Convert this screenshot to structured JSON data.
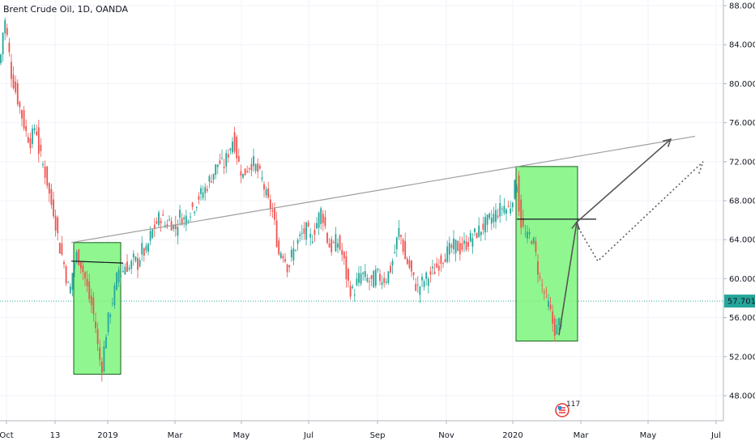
{
  "header": {
    "symbol_title": "Brent Crude Oil, 1D, OANDA"
  },
  "price_tag": {
    "value": "57.701",
    "bg": "#26a69a"
  },
  "colors": {
    "up": "#26a69a",
    "down": "#ef5350",
    "box_fill": "#7cf47c",
    "trend": "#9e9e9e",
    "arrow": "#555555"
  },
  "badge": {
    "count": "117"
  },
  "chart_data": {
    "type": "candlestick",
    "title": "Brent Crude Oil, 1D, OANDA",
    "x_ticks": [
      "Oct",
      "13",
      "2019",
      "Mar",
      "May",
      "Jul",
      "Sep",
      "Nov",
      "2020",
      "Mar",
      "May",
      "Jul"
    ],
    "y_ticks": [
      48,
      52,
      56,
      60,
      64,
      68,
      72,
      76,
      80,
      84,
      88
    ],
    "ylim": [
      45.5,
      88.5
    ],
    "last_price": 57.701,
    "price_path": [
      [
        0,
        82
      ],
      [
        3,
        85
      ],
      [
        6,
        86.5
      ],
      [
        10,
        84
      ],
      [
        14,
        81
      ],
      [
        20,
        79
      ],
      [
        26,
        77
      ],
      [
        32,
        75
      ],
      [
        38,
        74
      ],
      [
        44,
        76
      ],
      [
        48,
        73
      ],
      [
        52,
        72
      ],
      [
        58,
        70
      ],
      [
        62,
        68
      ],
      [
        66,
        67
      ],
      [
        70,
        65
      ],
      [
        74,
        63
      ],
      [
        78,
        62
      ],
      [
        82,
        60
      ],
      [
        86,
        58.5
      ],
      [
        90,
        61
      ],
      [
        95,
        62.5
      ],
      [
        100,
        61.5
      ],
      [
        105,
        60
      ],
      [
        110,
        58
      ],
      [
        114,
        57
      ],
      [
        118,
        55
      ],
      [
        122,
        52
      ],
      [
        126,
        51
      ],
      [
        130,
        54
      ],
      [
        134,
        56
      ],
      [
        138,
        57.5
      ],
      [
        142,
        59
      ],
      [
        146,
        61
      ],
      [
        150,
        60.5
      ],
      [
        155,
        61.5
      ],
      [
        160,
        61
      ],
      [
        165,
        62
      ],
      [
        170,
        61.5
      ],
      [
        175,
        63
      ],
      [
        180,
        62.5
      ],
      [
        186,
        64.5
      ],
      [
        192,
        65.5
      ],
      [
        198,
        66.5
      ],
      [
        204,
        65.5
      ],
      [
        210,
        66
      ],
      [
        216,
        65
      ],
      [
        222,
        66.5
      ],
      [
        228,
        66
      ],
      [
        234,
        67
      ],
      [
        240,
        67.5
      ],
      [
        246,
        68.5
      ],
      [
        252,
        69
      ],
      [
        258,
        70
      ],
      [
        264,
        71
      ],
      [
        270,
        72
      ],
      [
        276,
        71.5
      ],
      [
        282,
        73
      ],
      [
        288,
        74.5
      ],
      [
        294,
        72
      ],
      [
        300,
        70.5
      ],
      [
        306,
        71.5
      ],
      [
        312,
        72
      ],
      [
        318,
        71
      ],
      [
        324,
        70
      ],
      [
        330,
        68
      ],
      [
        336,
        67
      ],
      [
        340,
        65
      ],
      [
        344,
        62.5
      ],
      [
        348,
        63
      ],
      [
        352,
        62
      ],
      [
        356,
        61
      ],
      [
        360,
        62.5
      ],
      [
        366,
        63.5
      ],
      [
        372,
        64.5
      ],
      [
        378,
        65
      ],
      [
        384,
        64
      ],
      [
        390,
        65.5
      ],
      [
        396,
        67
      ],
      [
        400,
        66
      ],
      [
        404,
        64
      ],
      [
        408,
        63
      ],
      [
        412,
        63.5
      ],
      [
        416,
        64
      ],
      [
        420,
        63
      ],
      [
        424,
        62
      ],
      [
        428,
        60
      ],
      [
        432,
        59
      ],
      [
        436,
        58.5
      ],
      [
        440,
        59.5
      ],
      [
        446,
        60.5
      ],
      [
        452,
        60
      ],
      [
        458,
        59.5
      ],
      [
        464,
        60.5
      ],
      [
        470,
        60
      ],
      [
        476,
        60
      ],
      [
        482,
        61
      ],
      [
        488,
        63
      ],
      [
        492,
        65
      ],
      [
        496,
        64
      ],
      [
        500,
        62
      ],
      [
        504,
        61.5
      ],
      [
        508,
        60.5
      ],
      [
        512,
        59.5
      ],
      [
        516,
        59
      ],
      [
        520,
        59.5
      ],
      [
        526,
        60
      ],
      [
        532,
        60.5
      ],
      [
        538,
        61
      ],
      [
        544,
        62
      ],
      [
        550,
        62.5
      ],
      [
        556,
        63
      ],
      [
        562,
        63.5
      ],
      [
        568,
        63
      ],
      [
        574,
        63.5
      ],
      [
        580,
        64
      ],
      [
        586,
        64.5
      ],
      [
        592,
        65
      ],
      [
        598,
        65.5
      ],
      [
        604,
        66
      ],
      [
        610,
        66.5
      ],
      [
        616,
        67
      ],
      [
        622,
        67.5
      ],
      [
        626,
        67
      ],
      [
        630,
        67.5
      ],
      [
        634,
        69
      ],
      [
        638,
        70
      ],
      [
        642,
        66
      ],
      [
        646,
        65
      ],
      [
        650,
        64
      ],
      [
        654,
        64.5
      ],
      [
        658,
        64
      ],
      [
        662,
        62
      ],
      [
        666,
        60
      ],
      [
        670,
        59
      ],
      [
        674,
        58
      ],
      [
        678,
        57
      ],
      [
        682,
        55.5
      ],
      [
        686,
        54.5
      ],
      [
        690,
        55.5
      ],
      [
        694,
        57
      ]
    ],
    "shapes": {
      "rising_trendline": [
        [
          88,
          63.7
        ],
        [
          858,
          74.6
        ]
      ],
      "support_lines": [
        [
          88,
          61.8,
          152,
          61.6
        ],
        [
          638,
          66.1,
          736,
          66.1
        ]
      ],
      "boxes": [
        [
          91,
          63.7,
          149,
          50.2
        ],
        [
          637,
          71.5,
          713,
          53.6
        ]
      ],
      "projection_solid": [
        [
          690,
          54.2
        ],
        [
          712,
          65.8
        ],
        [
          828,
          74.3
        ]
      ],
      "projection_dotted": [
        [
          714,
          65.2
        ],
        [
          738,
          61.8
        ],
        [
          868,
          72.0
        ],
        [
          862,
          70.6
        ]
      ]
    }
  }
}
